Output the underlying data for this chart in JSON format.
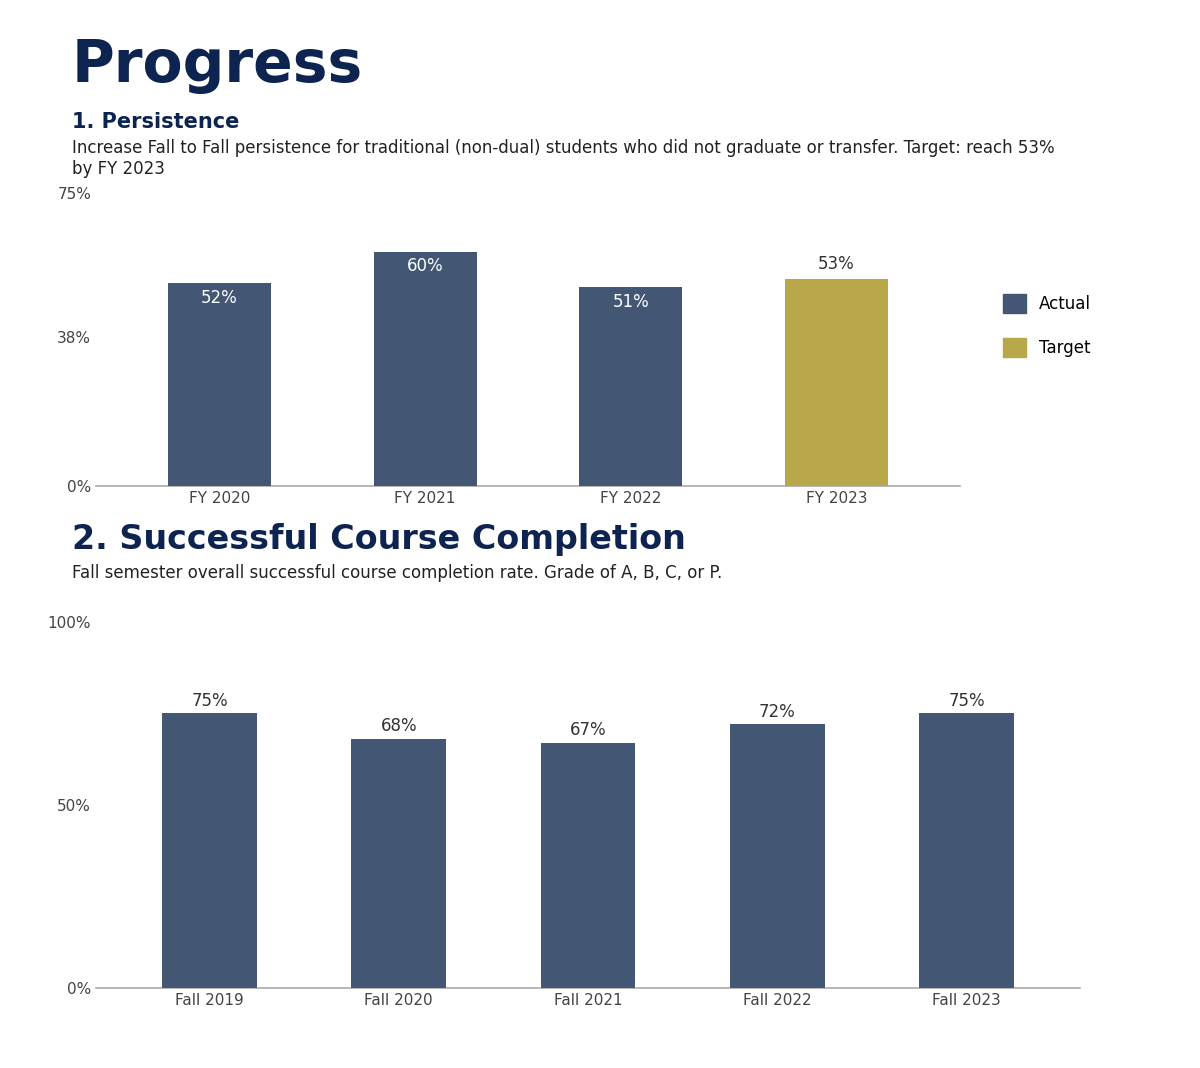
{
  "title": "Progress",
  "title_color": "#0d2350",
  "title_fontsize": 42,
  "title_fontweight": "bold",
  "section1_heading": "1. Persistence",
  "section1_heading_fontsize": 15,
  "section1_heading_fontweight": "bold",
  "section1_heading_color": "#0d2350",
  "section1_desc_normal": "Increase Fall to Fall persistence for traditional (non-dual) students who did not graduate or transfer. ",
  "section1_desc_bold": "Target",
  "section1_desc_after": ": reach 53%\nby FY 2023",
  "section1_desc_fontsize": 12,
  "section1_desc_color": "#222222",
  "chart1_categories": [
    "FY 2020",
    "FY 2021",
    "FY 2022",
    "FY 2023"
  ],
  "chart1_values": [
    52,
    60,
    51,
    53
  ],
  "chart1_colors": [
    "#435775",
    "#435775",
    "#435775",
    "#b8a84a"
  ],
  "chart1_label_colors": [
    "white",
    "white",
    "white",
    "#333333"
  ],
  "chart1_yticks": [
    0,
    38,
    75
  ],
  "chart1_ytick_labels": [
    "0%",
    "38%",
    "75%"
  ],
  "chart1_ylim": [
    0,
    82
  ],
  "chart1_actual_color": "#435775",
  "chart1_target_color": "#b8a84a",
  "section2_heading": "2. Successful Course Completion",
  "section2_heading_fontsize": 24,
  "section2_heading_fontweight": "bold",
  "section2_heading_color": "#0d2350",
  "section2_desc": "Fall semester overall successful course completion rate. Grade of A, B, C, or P.",
  "section2_desc_fontsize": 12,
  "section2_desc_color": "#222222",
  "chart2_categories": [
    "Fall 2019",
    "Fall 2020",
    "Fall 2021",
    "Fall 2022",
    "Fall 2023"
  ],
  "chart2_values": [
    75,
    68,
    67,
    72,
    75
  ],
  "chart2_colors": [
    "#435775",
    "#435775",
    "#435775",
    "#435775",
    "#435775"
  ],
  "chart2_label_colors": [
    "#333333",
    "#333333",
    "#333333",
    "#333333",
    "#333333"
  ],
  "chart2_yticks": [
    0,
    50,
    100
  ],
  "chart2_ytick_labels": [
    "0%",
    "50%",
    "100%"
  ],
  "chart2_ylim": [
    0,
    108
  ],
  "bar_width": 0.5,
  "bg_color": "#ffffff",
  "axis_color": "#aaaaaa",
  "tick_color": "#444444",
  "label_fontsize": 11,
  "value_fontsize": 12,
  "legend_actual_label": "Actual",
  "legend_target_label": "Target"
}
